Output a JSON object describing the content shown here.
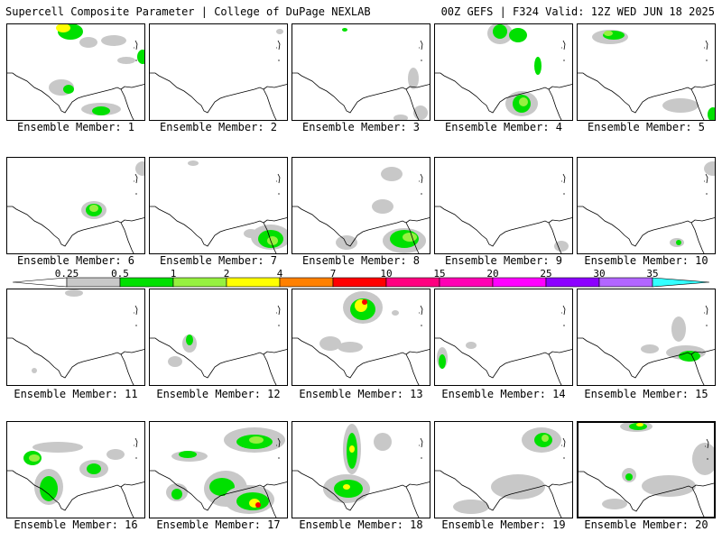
{
  "header": {
    "left_title": "Supercell Composite Parameter | College of DuPage NEXLAB",
    "right_title": "00Z GEFS | F324 Valid: 12Z WED JUN 18 2025"
  },
  "legend": {
    "ticks": [
      "0.25",
      "0.5",
      "1",
      "2",
      "4",
      "7",
      "10",
      "15",
      "20",
      "25",
      "30",
      "35"
    ],
    "colors": [
      "#ffffff",
      "#c8c8c8",
      "#00e000",
      "#96f040",
      "#ffff00",
      "#ff8000",
      "#ff0000",
      "#ff0080",
      "#ff00b4",
      "#ff00ff",
      "#8c00ff",
      "#b266ff",
      "#33ffff"
    ]
  },
  "panels": [
    {
      "label": "Ensemble Member: 1"
    },
    {
      "label": "Ensemble Member: 2"
    },
    {
      "label": "Ensemble Member: 3"
    },
    {
      "label": "Ensemble Member: 4"
    },
    {
      "label": "Ensemble Member: 5"
    },
    {
      "label": "Ensemble Member: 6"
    },
    {
      "label": "Ensemble Member: 7"
    },
    {
      "label": "Ensemble Member: 8"
    },
    {
      "label": "Ensemble Member: 9"
    },
    {
      "label": "Ensemble Member: 10"
    },
    {
      "label": "Ensemble Member: 11"
    },
    {
      "label": "Ensemble Member: 12"
    },
    {
      "label": "Ensemble Member: 13"
    },
    {
      "label": "Ensemble Member: 14"
    },
    {
      "label": "Ensemble Member: 15"
    },
    {
      "label": "Ensemble Member: 16"
    },
    {
      "label": "Ensemble Member: 17"
    },
    {
      "label": "Ensemble Member: 18"
    },
    {
      "label": "Ensemble Member: 19"
    },
    {
      "label": "Ensemble Member: 20"
    }
  ]
}
